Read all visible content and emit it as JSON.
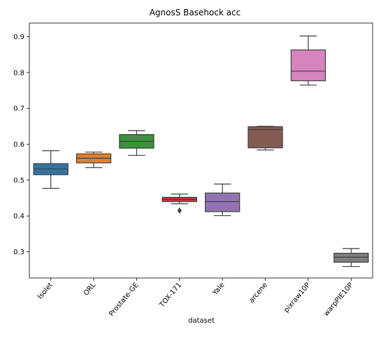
{
  "chart_data": {
    "type": "box",
    "title": "AgnosS Basehock acc",
    "xlabel": "dataset",
    "ylabel": "",
    "ylim": [
      0.227,
      0.938
    ],
    "yticks": [
      "0.3",
      "0.4",
      "0.5",
      "0.6",
      "0.7",
      "0.8",
      "0.9"
    ],
    "ytick_values": [
      0.3,
      0.4,
      0.5,
      0.6,
      0.7,
      0.8,
      0.9
    ],
    "grid": false,
    "categories": [
      "Isolet",
      "ORL",
      "Prostate-GE",
      "TOX-171",
      "Yale",
      "arcene",
      "pixraw10P",
      "warpPIE10P"
    ],
    "boxes": [
      {
        "name": "Isolet",
        "color": "#3274a1",
        "whisker_low": 0.477,
        "q1": 0.515,
        "median": 0.531,
        "q3": 0.546,
        "whisker_high": 0.582,
        "outliers": []
      },
      {
        "name": "ORL",
        "color": "#e1812c",
        "whisker_low": 0.535,
        "q1": 0.548,
        "median": 0.561,
        "q3": 0.573,
        "whisker_high": 0.578,
        "outliers": []
      },
      {
        "name": "Prostate-GE",
        "color": "#3a923a",
        "whisker_low": 0.569,
        "q1": 0.589,
        "median": 0.608,
        "q3": 0.627,
        "whisker_high": 0.638,
        "outliers": []
      },
      {
        "name": "TOX-171",
        "color": "#c03d3e",
        "whisker_low": 0.434,
        "q1": 0.44,
        "median": 0.446,
        "q3": 0.452,
        "whisker_high": 0.461,
        "outliers": [
          0.415
        ]
      },
      {
        "name": "Yale",
        "color": "#9372b2",
        "whisker_low": 0.401,
        "q1": 0.412,
        "median": 0.44,
        "q3": 0.464,
        "whisker_high": 0.489,
        "outliers": []
      },
      {
        "name": "arcene",
        "color": "#845b53",
        "whisker_low": 0.584,
        "q1": 0.59,
        "median": 0.641,
        "q3": 0.649,
        "whisker_high": 0.65,
        "outliers": []
      },
      {
        "name": "pixraw10P",
        "color": "#d684bd",
        "whisker_low": 0.765,
        "q1": 0.777,
        "median": 0.804,
        "q3": 0.863,
        "whisker_high": 0.902,
        "outliers": []
      },
      {
        "name": "warpPIE10P",
        "color": "#7f7f7f",
        "whisker_low": 0.259,
        "q1": 0.271,
        "median": 0.285,
        "q3": 0.296,
        "whisker_high": 0.309,
        "outliers": []
      }
    ]
  }
}
